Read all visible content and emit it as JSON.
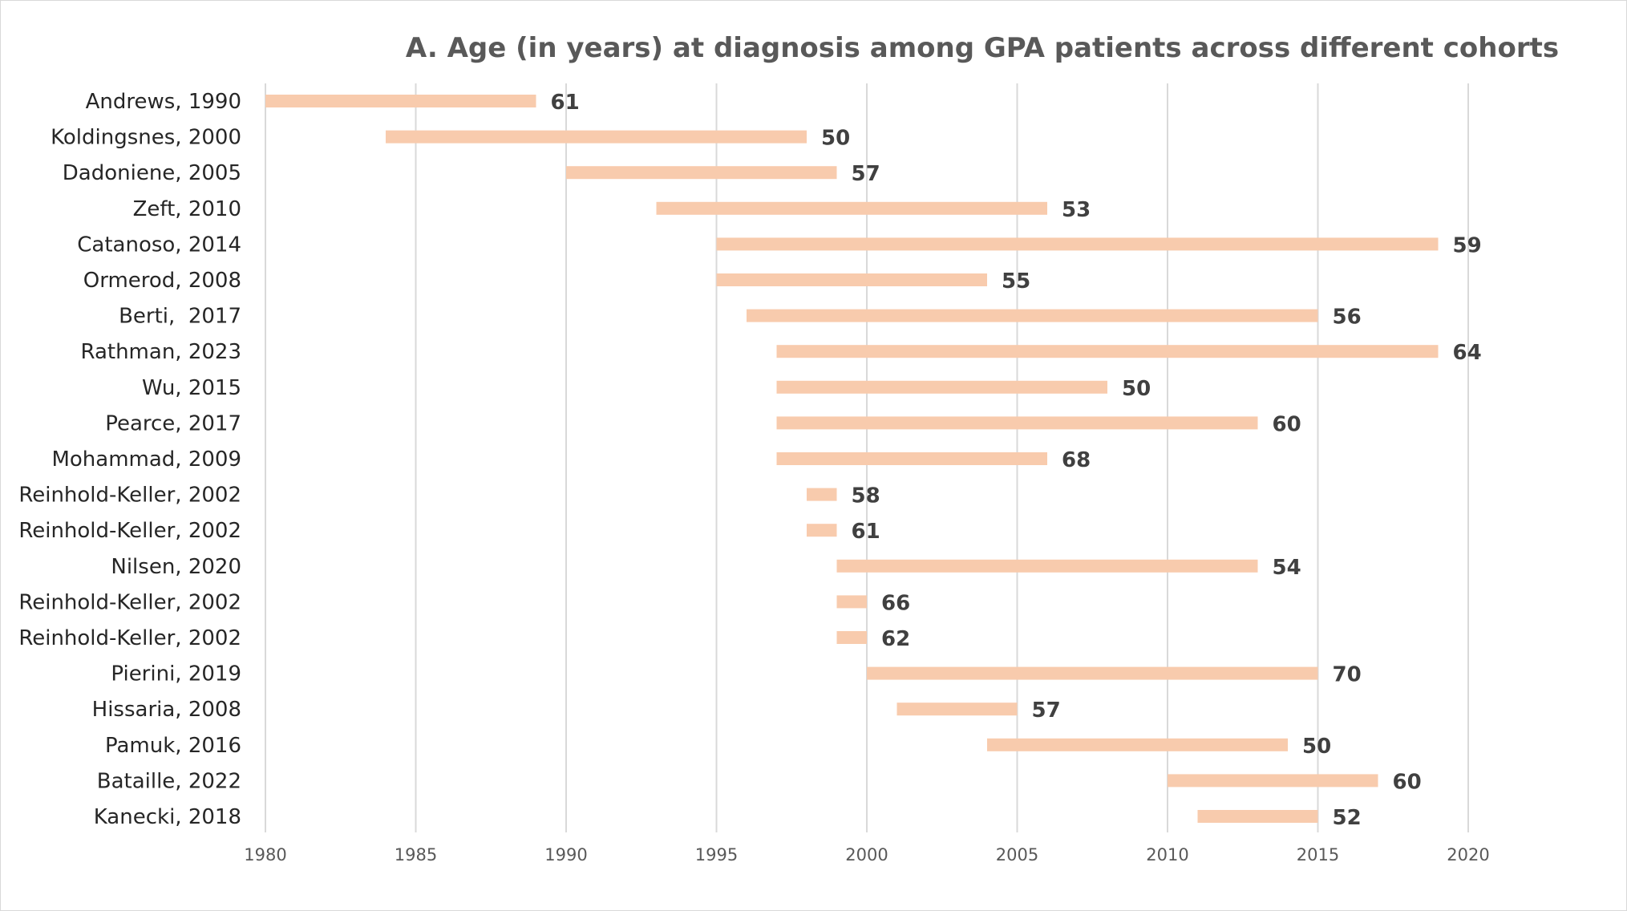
{
  "chart_data": {
    "type": "bar",
    "orientation": "horizontal-range",
    "title": "A. Age (in years) at diagnosis among GPA patients across different cohorts",
    "xlabel": "",
    "ylabel": "",
    "xlim": [
      1980,
      2020
    ],
    "xticks": [
      1980,
      1985,
      1990,
      1995,
      2000,
      2005,
      2010,
      2015,
      2020
    ],
    "grid": true,
    "legend": "none",
    "bar_color": "#f8cbad",
    "bars": [
      {
        "label": "Andrews, 1990",
        "start": 1980,
        "end": 1989,
        "value": "61"
      },
      {
        "label": "Koldingsnes, 2000",
        "start": 1984,
        "end": 1998,
        "value": "50"
      },
      {
        "label": "Dadoniene, 2005",
        "start": 1990,
        "end": 1999,
        "value": "57"
      },
      {
        "label": "Zeft, 2010",
        "start": 1993,
        "end": 2006,
        "value": "53"
      },
      {
        "label": "Catanoso, 2014",
        "start": 1995,
        "end": 2019,
        "value": "59"
      },
      {
        "label": "Ormerod, 2008",
        "start": 1995,
        "end": 2004,
        "value": "55"
      },
      {
        "label": "Berti,  2017",
        "start": 1996,
        "end": 2015,
        "value": "56"
      },
      {
        "label": "Rathman, 2023",
        "start": 1997,
        "end": 2019,
        "value": "64"
      },
      {
        "label": "Wu, 2015",
        "start": 1997,
        "end": 2008,
        "value": "50"
      },
      {
        "label": "Pearce, 2017",
        "start": 1997,
        "end": 2013,
        "value": "60"
      },
      {
        "label": "Mohammad, 2009",
        "start": 1997,
        "end": 2006,
        "value": "68"
      },
      {
        "label": "Reinhold-Keller, 2002",
        "start": 1998,
        "end": 1999,
        "value": "58"
      },
      {
        "label": "Reinhold-Keller, 2002",
        "start": 1998,
        "end": 1999,
        "value": "61"
      },
      {
        "label": "Nilsen, 2020",
        "start": 1999,
        "end": 2013,
        "value": "54"
      },
      {
        "label": "Reinhold-Keller, 2002",
        "start": 1999,
        "end": 2000,
        "value": "66"
      },
      {
        "label": "Reinhold-Keller, 2002",
        "start": 1999,
        "end": 2000,
        "value": "62"
      },
      {
        "label": "Pierini, 2019",
        "start": 2000,
        "end": 2015,
        "value": "70"
      },
      {
        "label": "Hissaria, 2008",
        "start": 2001,
        "end": 2005,
        "value": "57"
      },
      {
        "label": "Pamuk, 2016",
        "start": 2004,
        "end": 2014,
        "value": "50"
      },
      {
        "label": "Bataille, 2022",
        "start": 2010,
        "end": 2017,
        "value": "60"
      },
      {
        "label": "Kanecki, 2018",
        "start": 2011,
        "end": 2015,
        "value": "52"
      }
    ]
  }
}
